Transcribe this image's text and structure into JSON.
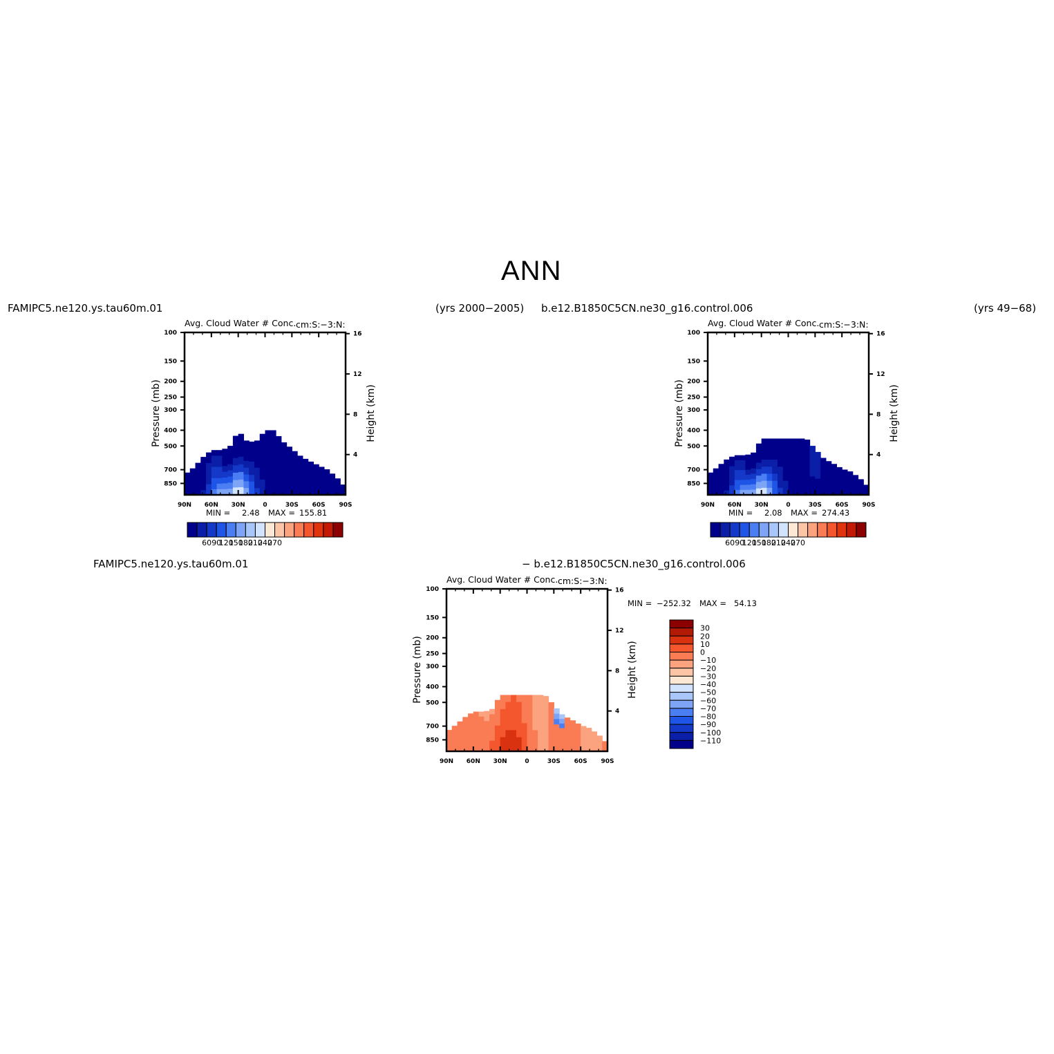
{
  "page_title": "ANN",
  "cases": {
    "test_case": "FAMIPC5.ne120.ys.tau60m.01",
    "test_years": "(yrs 2000−2005)",
    "control_case": "b.e12.B1850C5CN.ne30_g16.control.006",
    "control_years": "(yrs 49−68)",
    "diff_left": "FAMIPC5.ne120.ys.tau60m.01",
    "diff_right": "− b.e12.B1850C5CN.ne30_g16.control.006"
  },
  "colors": {
    "scale_abs": [
      "#00008b",
      "#0a1ea8",
      "#1438c8",
      "#1f55e6",
      "#4b7ef2",
      "#7ea4f6",
      "#a9c6fa",
      "#d2e4fd",
      "#fde8d6",
      "#fcc5a6",
      "#fba27e",
      "#f97c55",
      "#f4562e",
      "#e2330f",
      "#c21a05",
      "#8b0000"
    ],
    "scale_diff_top_to_bottom": [
      "#8b0000",
      "#b31a05",
      "#d83210",
      "#f4562e",
      "#f97c55",
      "#fba27e",
      "#fcc5a6",
      "#fde8d6",
      "#d2e4fd",
      "#a9c6fa",
      "#7ea4f6",
      "#4b7ef2",
      "#1f55e6",
      "#1438c8",
      "#0a1ea8",
      "#00008b"
    ]
  },
  "panels": [
    {
      "title": "Avg. Cloud Water # Conc.",
      "units": "cm:S:−3:N:",
      "min_label": "MIN =",
      "min_value": "2.48",
      "max_label": "MAX =",
      "max_value": "155.81",
      "colorbar_labels": [
        "60",
        "90",
        "120",
        "150",
        "180",
        "210",
        "240",
        "270"
      ]
    },
    {
      "title": "Avg. Cloud Water # Conc.",
      "units": "cm:S:−3:N:",
      "min_label": "MIN =",
      "min_value": "2.08",
      "max_label": "MAX =",
      "max_value": "274.43",
      "colorbar_labels": [
        "60",
        "90",
        "120",
        "150",
        "180",
        "210",
        "240",
        "270"
      ]
    },
    {
      "title": "Avg. Cloud Water # Conc.",
      "units": "cm:S:−3:N:",
      "min_label": "MIN =",
      "min_value": "−252.32",
      "max_label": "MAX =",
      "max_value": "54.13",
      "colorbar_labels": [
        "30",
        "20",
        "10",
        "0",
        "−10",
        "−20",
        "−30",
        "−40",
        "−50",
        "−60",
        "−70",
        "−80",
        "−90",
        "−100",
        "−110"
      ]
    }
  ],
  "chart_data": [
    {
      "type": "heatmap",
      "title": "Avg. Cloud Water # Conc.",
      "ylabel": "Pressure (mb)",
      "y2label": "Height (km)",
      "x_ticks": [
        "90N",
        "60N",
        "30N",
        "0",
        "30S",
        "60S",
        "90S"
      ],
      "y_ticks": [
        "100",
        "150",
        "200",
        "250",
        "300",
        "400",
        "500",
        "700",
        "850"
      ],
      "y2_ticks": [
        "16",
        "12",
        "8",
        "4"
      ],
      "xlim": [
        90,
        -90
      ],
      "ylim": [
        100,
        1000
      ],
      "y_scale": "log",
      "min": 2.48,
      "max": 155.81,
      "cloud_top_pressure_mb": {
        "lat": [
          90,
          80,
          70,
          60,
          50,
          40,
          30,
          20,
          10,
          0,
          -10,
          -20,
          -30,
          -40,
          -50,
          -60,
          -70,
          -80,
          -90
        ],
        "value": [
          750,
          680,
          590,
          530,
          530,
          510,
          400,
          470,
          470,
          400,
          400,
          470,
          520,
          580,
          620,
          660,
          700,
          780,
          900
        ]
      }
    },
    {
      "type": "heatmap",
      "title": "Avg. Cloud Water # Conc.",
      "ylabel": "Pressure (mb)",
      "y2label": "Height (km)",
      "x_ticks": [
        "90N",
        "60N",
        "30N",
        "0",
        "30S",
        "60S",
        "90S"
      ],
      "y_ticks": [
        "100",
        "150",
        "200",
        "250",
        "300",
        "400",
        "500",
        "700",
        "850"
      ],
      "y2_ticks": [
        "16",
        "12",
        "8",
        "4"
      ],
      "xlim": [
        90,
        -90
      ],
      "ylim": [
        100,
        1000
      ],
      "y_scale": "log",
      "min": 2.08,
      "max": 274.43,
      "cloud_top_pressure_mb": {
        "lat": [
          90,
          80,
          70,
          60,
          50,
          40,
          30,
          20,
          10,
          0,
          -10,
          -20,
          -30,
          -40,
          -50,
          -60,
          -70,
          -80,
          -90
        ],
        "value": [
          750,
          680,
          610,
          570,
          570,
          560,
          450,
          450,
          450,
          450,
          450,
          450,
          520,
          600,
          640,
          690,
          720,
          790,
          900
        ]
      }
    },
    {
      "type": "heatmap",
      "title": "Avg. Cloud Water # Conc.",
      "ylabel": "Pressure (mb)",
      "y2label": "Height (km)",
      "x_ticks": [
        "90N",
        "60N",
        "30N",
        "0",
        "30S",
        "60S",
        "90S"
      ],
      "y_ticks": [
        "100",
        "150",
        "200",
        "250",
        "300",
        "400",
        "500",
        "700",
        "850"
      ],
      "y2_ticks": [
        "16",
        "12",
        "8",
        "4"
      ],
      "xlim": [
        90,
        -90
      ],
      "ylim": [
        100,
        1000
      ],
      "y_scale": "log",
      "min": -252.32,
      "max": 54.13,
      "cloud_top_pressure_mb": {
        "lat": [
          90,
          80,
          70,
          60,
          50,
          40,
          30,
          20,
          10,
          0,
          -10,
          -20,
          -30,
          -40,
          -50,
          -60,
          -70,
          -80,
          -90
        ],
        "value": [
          760,
          690,
          620,
          570,
          570,
          560,
          450,
          450,
          450,
          450,
          450,
          450,
          520,
          600,
          640,
          690,
          720,
          790,
          900
        ]
      }
    }
  ]
}
